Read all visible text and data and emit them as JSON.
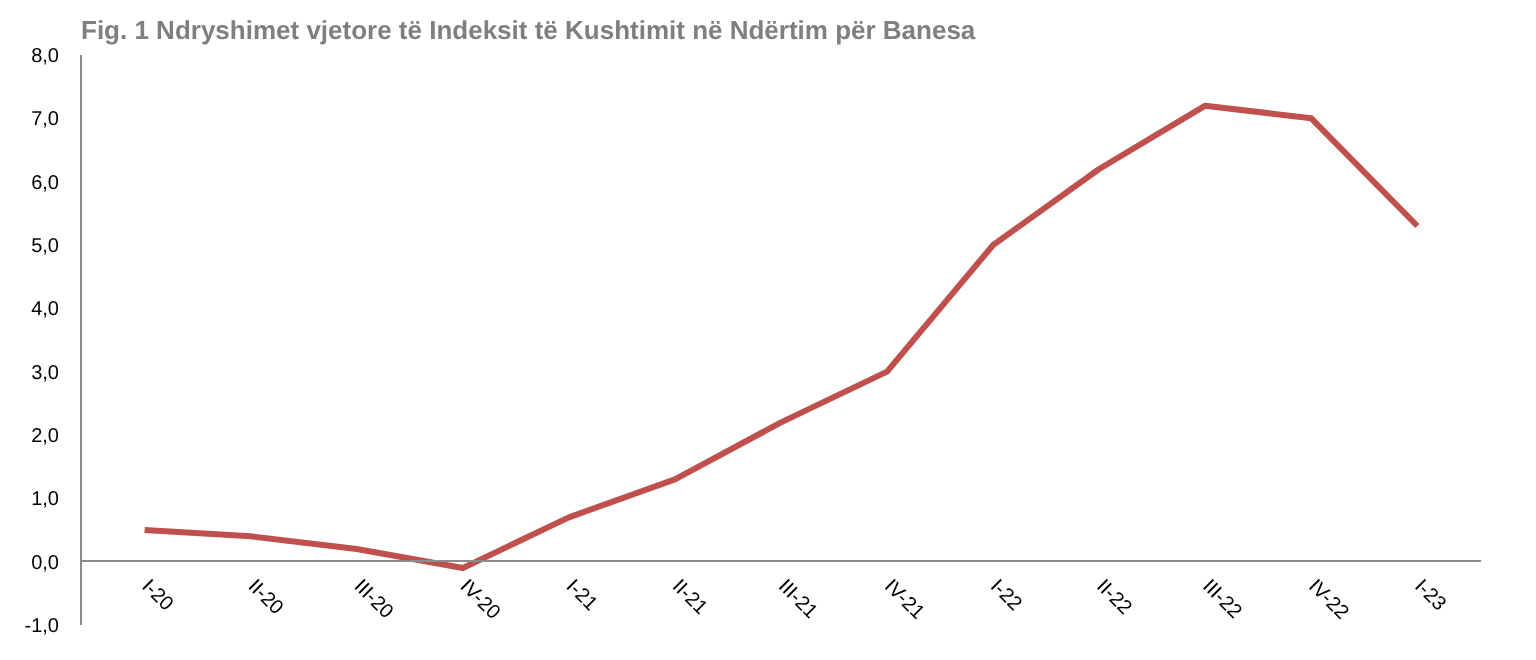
{
  "chart_data": {
    "type": "line",
    "title": "Fig. 1 Ndryshimet vjetore të Indeksit të Kushtimit në Ndërtim për Banesa",
    "categories": [
      "I-20",
      "II-20",
      "III-20",
      "IV-20",
      "I-21",
      "II-21",
      "III-21",
      "IV-21",
      "I-22",
      "II-22",
      "III-22",
      "IV-22",
      "I-23"
    ],
    "series": [
      {
        "color": "#c0504d",
        "values": [
          0.5,
          0.4,
          0.2,
          -0.1,
          0.7,
          1.3,
          2.2,
          3.0,
          5.0,
          6.2,
          7.2,
          7.0,
          5.3
        ]
      }
    ],
    "ylim": [
      -1,
      8
    ],
    "yticks": [
      {
        "value": -1,
        "label": "-1,0"
      },
      {
        "value": 0,
        "label": "0,0"
      },
      {
        "value": 1,
        "label": "1,0"
      },
      {
        "value": 2,
        "label": "2,0"
      },
      {
        "value": 3,
        "label": "3,0"
      },
      {
        "value": 4,
        "label": "4,0"
      },
      {
        "value": 5,
        "label": "5,0"
      },
      {
        "value": 6,
        "label": "6,0"
      },
      {
        "value": 7,
        "label": "7,0"
      },
      {
        "value": 8,
        "label": "8,0"
      }
    ],
    "grid": false,
    "marker": "none",
    "line_style": "solid"
  }
}
